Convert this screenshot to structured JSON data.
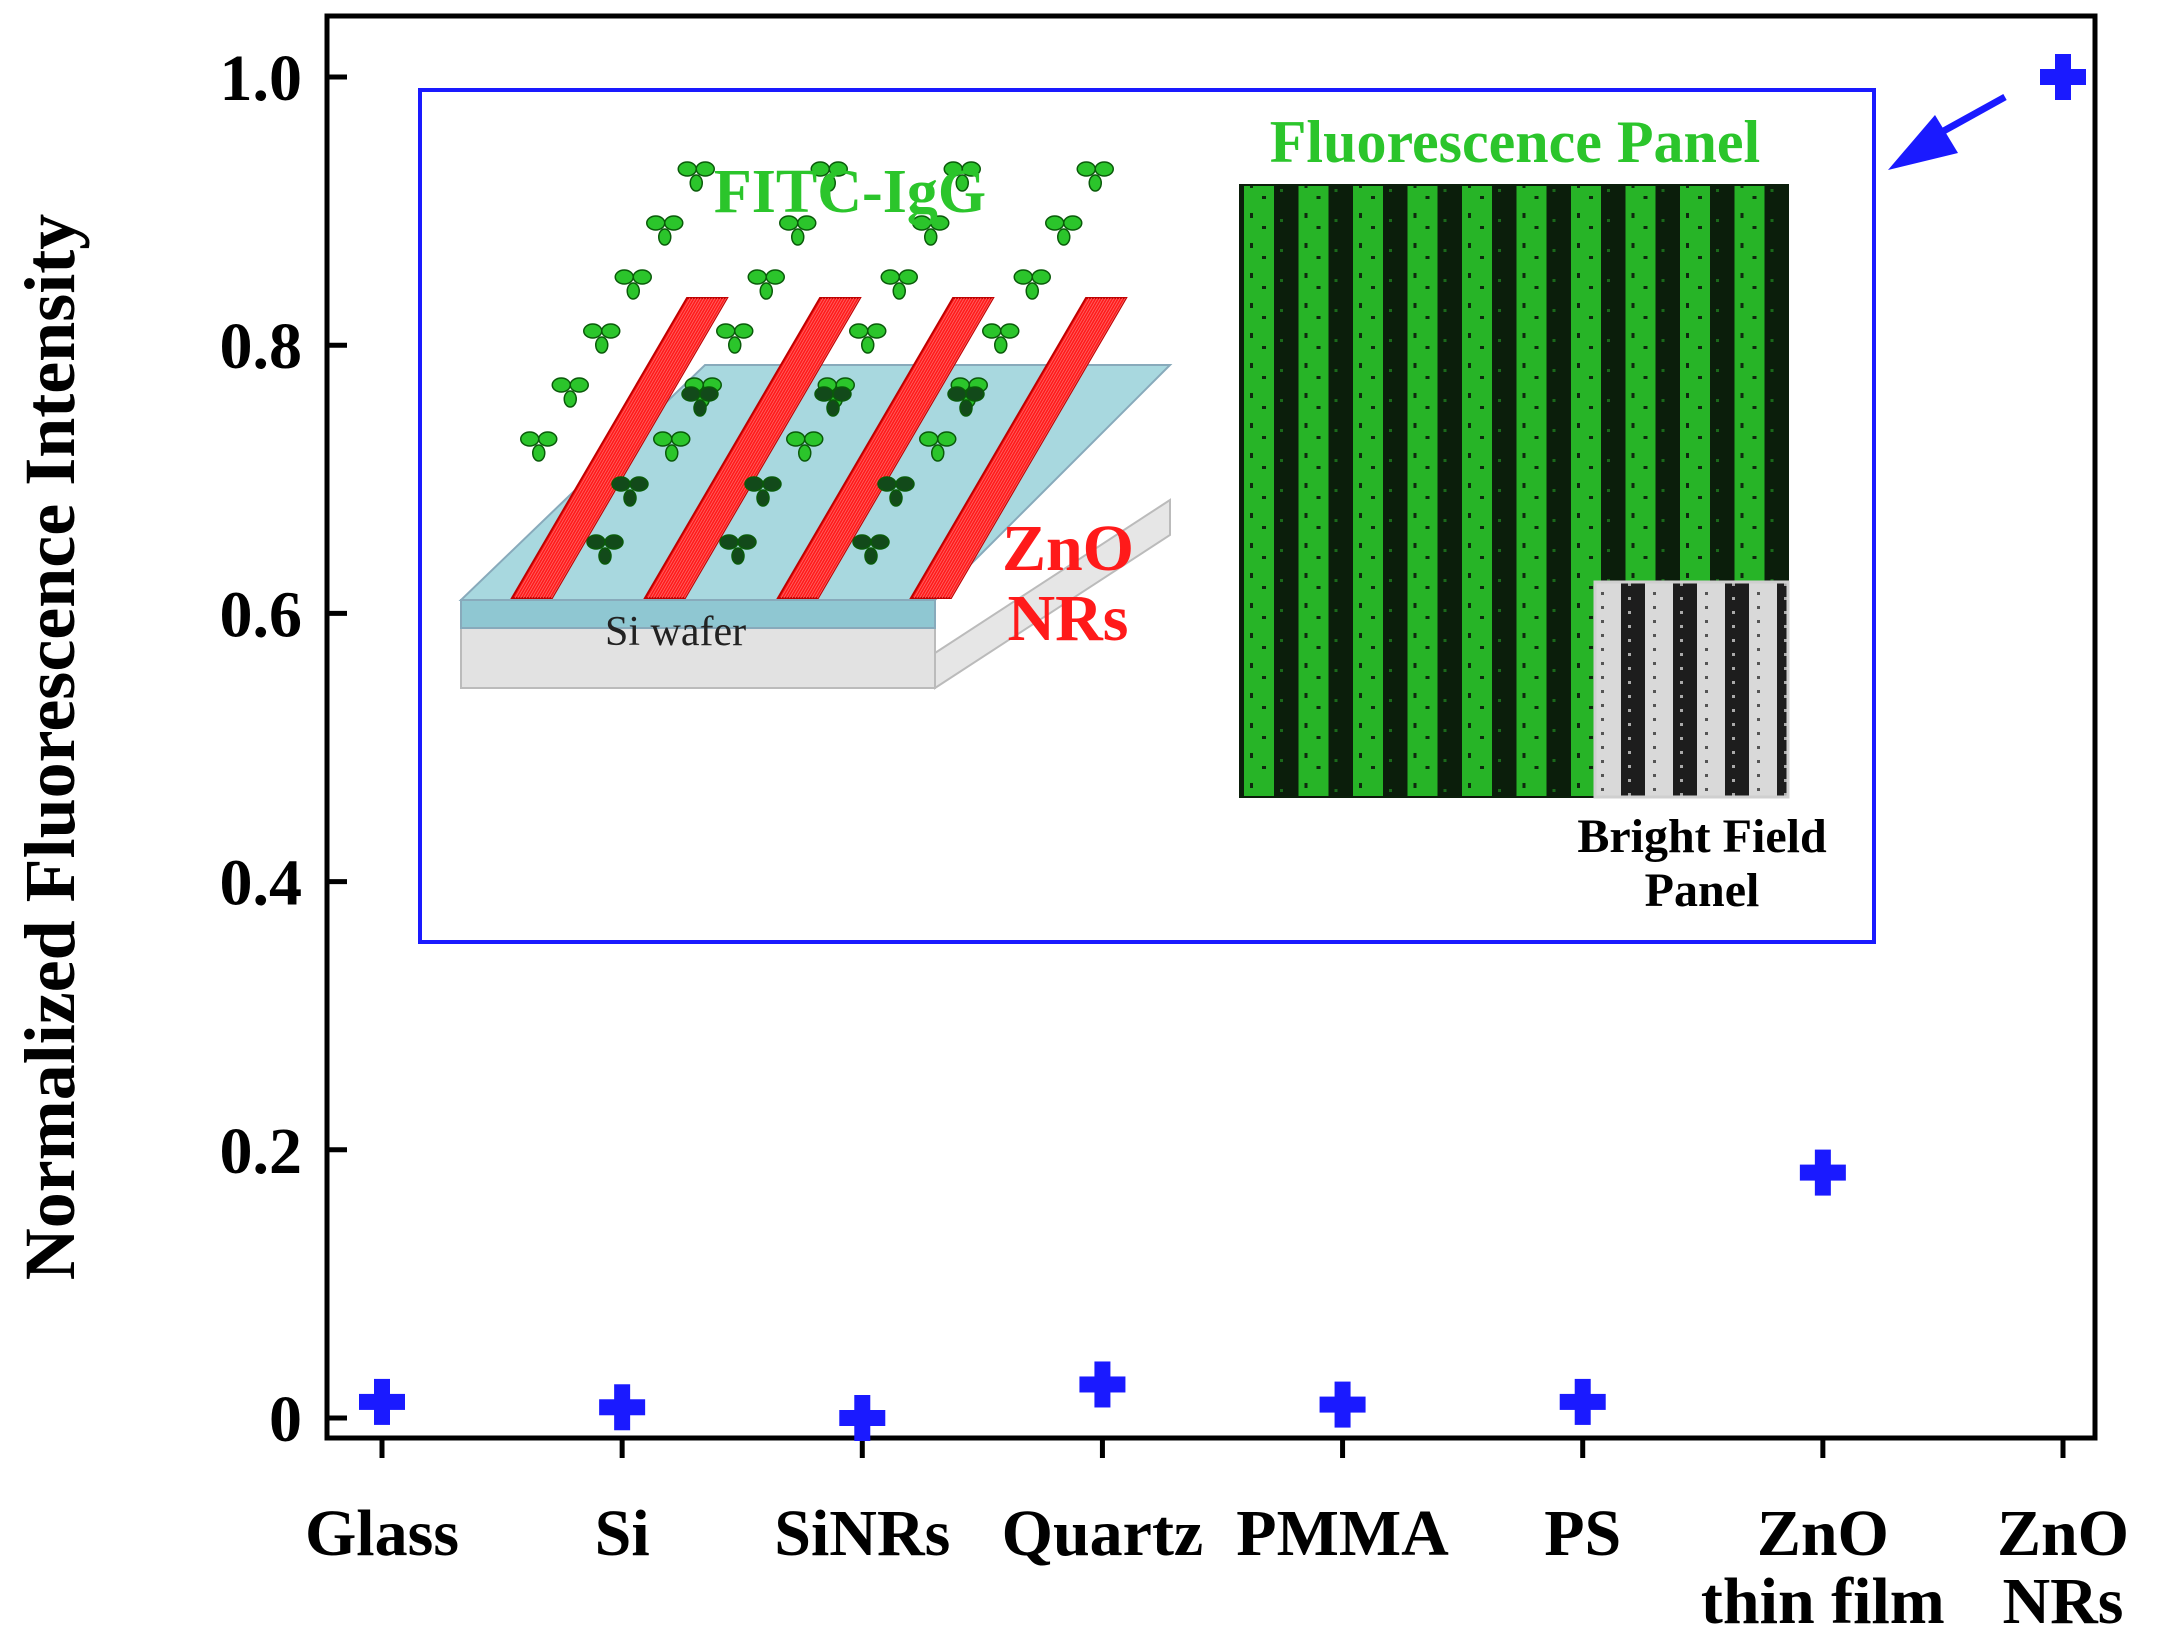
{
  "chart_data": {
    "type": "scatter",
    "title": "",
    "xlabel": "",
    "ylabel": "Normalized Fluorescence Intensity",
    "categories": [
      [
        "Glass"
      ],
      [
        "Si"
      ],
      [
        "SiNRs"
      ],
      [
        "Quartz"
      ],
      [
        "PMMA"
      ],
      [
        "PS"
      ],
      [
        "ZnO",
        "thin film"
      ],
      [
        "ZnO",
        "NRs"
      ]
    ],
    "series": [
      {
        "name": "Normalized Fluorescence Intensity",
        "values": [
          0.012,
          0.008,
          0.0,
          0.025,
          0.01,
          0.012,
          0.183,
          1.0
        ],
        "marker": "plus",
        "color": "#1a1aff"
      }
    ],
    "ylim": [
      0,
      1.0
    ],
    "yticks": [
      0,
      0.2,
      0.4,
      0.6,
      0.8,
      1.0
    ],
    "ytick_labels": [
      "0",
      "0.2",
      "0.4",
      "0.6",
      "0.8",
      "1.0"
    ],
    "grid": false
  },
  "inset": {
    "fitc_label": "FITC-IgG",
    "zno_label_1": "ZnO",
    "zno_label_2": "NRs",
    "wafer_label": "Si wafer",
    "fluorescence_panel_label": "Fluorescence Panel",
    "bright_field_label_1": "Bright Field",
    "bright_field_label_2": "Panel",
    "frame_color": "#1a1aff",
    "green": "#2bc52b",
    "red": "#ff1a1a"
  }
}
